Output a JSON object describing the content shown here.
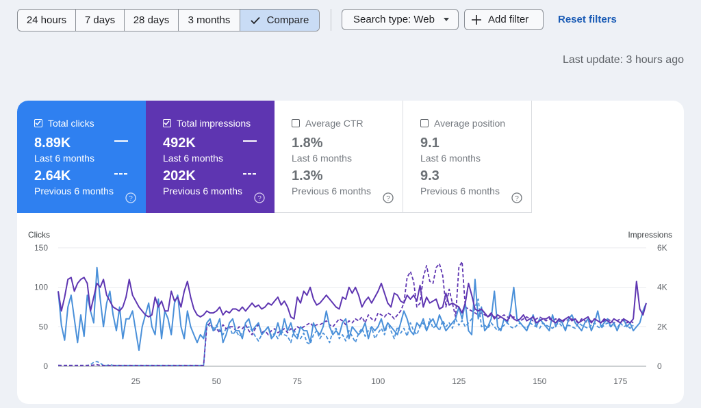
{
  "toolbar": {
    "ranges": [
      "24 hours",
      "7 days",
      "28 days",
      "3 months"
    ],
    "compare_label": "Compare",
    "search_type_label": "Search type: Web",
    "add_filter_label": "Add filter",
    "reset_label": "Reset filters"
  },
  "last_update": "Last update: 3 hours ago",
  "metrics": [
    {
      "title": "Total clicks",
      "checked": true,
      "value": "8.89K",
      "period": "Last 6 months",
      "prev_value": "2.64K",
      "prev_period": "Previous 6 months",
      "color": "#2f80f0"
    },
    {
      "title": "Total impressions",
      "checked": true,
      "value": "492K",
      "period": "Last 6 months",
      "prev_value": "202K",
      "prev_period": "Previous 6 months",
      "color": "#5e35b1"
    },
    {
      "title": "Average CTR",
      "checked": false,
      "value": "1.8%",
      "period": "Last 6 months",
      "prev_value": "1.3%",
      "prev_period": "Previous 6 months"
    },
    {
      "title": "Average position",
      "checked": false,
      "value": "9.1",
      "period": "Last 6 months",
      "prev_value": "9.3",
      "prev_period": "Previous 6 months"
    }
  ],
  "chart_data": {
    "type": "line",
    "ylabel": "Clicks",
    "y2label": "Impressions",
    "ylim": [
      0,
      150
    ],
    "y2lim": [
      0,
      6000
    ],
    "yticks": [
      "0",
      "50",
      "100",
      "150"
    ],
    "y2ticks": [
      "0",
      "2K",
      "4K",
      "6K"
    ],
    "xticks": [
      25,
      50,
      75,
      100,
      125,
      150,
      175
    ],
    "xlim": [
      1,
      183
    ],
    "grid": true,
    "colors": {
      "clicks": "#4a90d9",
      "impressions": "#5e35b1"
    },
    "series": [
      {
        "name": "Total clicks",
        "axis": "left",
        "style": "solid",
        "values": [
          95,
          52,
          33,
          75,
          90,
          60,
          30,
          65,
          38,
          90,
          70,
          55,
          125,
          85,
          50,
          80,
          95,
          65,
          45,
          75,
          35,
          60,
          60,
          70,
          45,
          20,
          50,
          65,
          80,
          50,
          40,
          85,
          35,
          70,
          60,
          40,
          80,
          90,
          50,
          35,
          70,
          50,
          40,
          30,
          40,
          35,
          55,
          60,
          45,
          50,
          60,
          30,
          40,
          55,
          60,
          45,
          45,
          35,
          55,
          60,
          45,
          50,
          55,
          40,
          45,
          50,
          35,
          40,
          55,
          40,
          60,
          45,
          55,
          40,
          35,
          50,
          45,
          45,
          30,
          55,
          45,
          40,
          50,
          70,
          50,
          40,
          45,
          40,
          55,
          60,
          35,
          50,
          45,
          40,
          45,
          55,
          35,
          50,
          45,
          50,
          60,
          45,
          55,
          50,
          45,
          40,
          55,
          70,
          60,
          45,
          40,
          55,
          50,
          60,
          45,
          55,
          60,
          50,
          65,
          55,
          45,
          50,
          55,
          60,
          75,
          60,
          80,
          45,
          40,
          110,
          60,
          75,
          45,
          50,
          60,
          95,
          50,
          45,
          60,
          55,
          70,
          100,
          60,
          55,
          50,
          45,
          55,
          65,
          50,
          60,
          55,
          50,
          45,
          65,
          50,
          60,
          55,
          45,
          60,
          65,
          55,
          50,
          45,
          55,
          60,
          45,
          55,
          70,
          50,
          55,
          60,
          50,
          55,
          45,
          55,
          60,
          50,
          55,
          45,
          50,
          55,
          70,
          80
        ]
      },
      {
        "name": "Total clicks (previous period)",
        "axis": "left",
        "style": "dashed",
        "values": [
          1,
          1,
          1,
          1,
          1,
          1,
          1,
          1,
          1,
          1,
          2,
          5,
          6,
          4,
          1,
          1,
          2,
          1,
          1,
          1,
          1,
          1,
          1,
          1,
          1,
          1,
          1,
          1,
          1,
          1,
          1,
          1,
          1,
          1,
          1,
          1,
          1,
          1,
          1,
          1,
          1,
          1,
          1,
          1,
          1,
          1,
          55,
          50,
          48,
          52,
          45,
          40,
          48,
          50,
          40,
          45,
          38,
          42,
          48,
          50,
          45,
          38,
          32,
          40,
          45,
          50,
          38,
          42,
          35,
          45,
          40,
          38,
          30,
          45,
          40,
          35,
          42,
          30,
          28,
          40,
          45,
          35,
          42,
          38,
          30,
          45,
          48,
          35,
          40,
          32,
          45,
          38,
          30,
          42,
          48,
          38,
          45,
          50,
          35,
          42,
          48,
          40,
          55,
          45,
          35,
          50,
          42,
          48,
          38,
          55,
          45,
          40,
          50,
          55,
          45,
          60,
          48,
          52,
          45,
          58,
          50,
          55,
          48,
          60,
          52,
          58,
          50,
          55,
          60,
          75,
          85,
          50,
          52,
          48,
          55,
          50,
          45,
          48,
          52,
          55,
          50,
          48,
          52,
          55,
          50,
          48,
          55,
          52,
          50,
          48,
          55,
          52,
          50,
          48,
          52,
          55,
          50,
          48,
          52,
          50,
          48,
          55,
          52,
          50,
          48,
          52,
          55,
          50,
          48,
          52,
          55,
          50,
          52,
          48,
          55,
          50,
          52,
          48,
          52
        ]
      },
      {
        "name": "Total impressions",
        "axis": "right",
        "style": "solid",
        "values": [
          3800,
          2800,
          3500,
          4400,
          4500,
          3800,
          4200,
          4400,
          4500,
          4200,
          2800,
          3500,
          4200,
          4000,
          4400,
          3600,
          3300,
          3000,
          2900,
          2800,
          3000,
          3500,
          4400,
          3600,
          3300,
          3000,
          2800,
          2600,
          2500,
          2600,
          3500,
          3000,
          3300,
          2800,
          2800,
          3800,
          3300,
          3500,
          3000,
          3800,
          4300,
          3500,
          2900,
          2600,
          2500,
          2600,
          2800,
          2700,
          2700,
          2800,
          3000,
          2600,
          2800,
          2700,
          2900,
          2900,
          2800,
          3000,
          2800,
          3000,
          3200,
          3000,
          3100,
          2900,
          3000,
          3200,
          3100,
          3300,
          3500,
          3100,
          3300,
          3000,
          2500,
          2400,
          3500,
          3200,
          3800,
          3600,
          4000,
          3400,
          3100,
          3200,
          3400,
          3600,
          3400,
          3200,
          3000,
          2900,
          3500,
          3400,
          4000,
          3700,
          4000,
          3600,
          3000,
          3300,
          3500,
          3200,
          3500,
          3800,
          4200,
          3700,
          3200,
          3000,
          3700,
          3600,
          3300,
          3200,
          3600,
          3400,
          3600,
          3300,
          4100,
          3000,
          3500,
          3200,
          3300,
          3400,
          2900,
          3000,
          3700,
          3100,
          3200,
          3100,
          3000,
          2700,
          3200,
          4200,
          3600,
          2900,
          2800,
          2900,
          2700,
          2500,
          2700,
          2400,
          2600,
          2500,
          2400,
          2300,
          2600,
          2400,
          2300,
          2400,
          2600,
          2300,
          2400,
          2500,
          2200,
          2300,
          2400,
          2400,
          2500,
          2300,
          2200,
          2400,
          2300,
          2400,
          2500,
          2300,
          2400,
          2200,
          2300,
          2400,
          2500,
          2200,
          2400,
          2300,
          2200,
          2400,
          2300,
          2200,
          2400,
          2300,
          2200,
          2400,
          2300,
          2200,
          2400,
          4300,
          2900,
          2600,
          3200
        ]
      },
      {
        "name": "Total impressions (previous period)",
        "axis": "right",
        "style": "dashed",
        "values": [
          50,
          40,
          40,
          40,
          40,
          40,
          40,
          40,
          40,
          40,
          40,
          60,
          80,
          40,
          40,
          40,
          40,
          40,
          40,
          40,
          40,
          40,
          40,
          40,
          40,
          40,
          40,
          40,
          40,
          40,
          40,
          40,
          40,
          40,
          40,
          40,
          40,
          40,
          40,
          40,
          40,
          40,
          40,
          40,
          40,
          40,
          2000,
          2200,
          1800,
          1900,
          1700,
          2100,
          1900,
          2000,
          2000,
          1800,
          2000,
          1900,
          2100,
          1800,
          1600,
          1900,
          2100,
          1700,
          1800,
          1600,
          1800,
          1900,
          1700,
          1800,
          1900,
          1700,
          1900,
          1800,
          2000,
          1900,
          2000,
          2100,
          2200,
          2000,
          2100,
          2100,
          2200,
          2300,
          2100,
          2000,
          2200,
          2400,
          2300,
          2100,
          2300,
          2200,
          2400,
          2300,
          2500,
          2200,
          2600,
          2400,
          2300,
          2700,
          2600,
          2500,
          2700,
          2600,
          2400,
          2600,
          2800,
          3200,
          4500,
          4800,
          4300,
          3000,
          3200,
          4500,
          5100,
          4300,
          4200,
          5000,
          5200,
          4600,
          3000,
          3900,
          3200,
          2500,
          5000,
          5300,
          3000,
          2900,
          2800,
          2700,
          2600,
          2700,
          2600,
          2500,
          2600,
          2500,
          2400,
          2500,
          2600,
          2500,
          2400,
          2500,
          2400,
          2300,
          2400,
          2500,
          2400,
          2300,
          2400,
          2500,
          2400,
          2300,
          2400,
          2300,
          2400,
          2300,
          2200,
          2400,
          2300,
          2400,
          2300,
          2200,
          2400,
          2300,
          2200,
          2300,
          2400,
          2300,
          2200,
          2300,
          2400,
          2300,
          2200,
          2300,
          2400,
          2300,
          2200,
          2300,
          2200
        ]
      }
    ]
  }
}
